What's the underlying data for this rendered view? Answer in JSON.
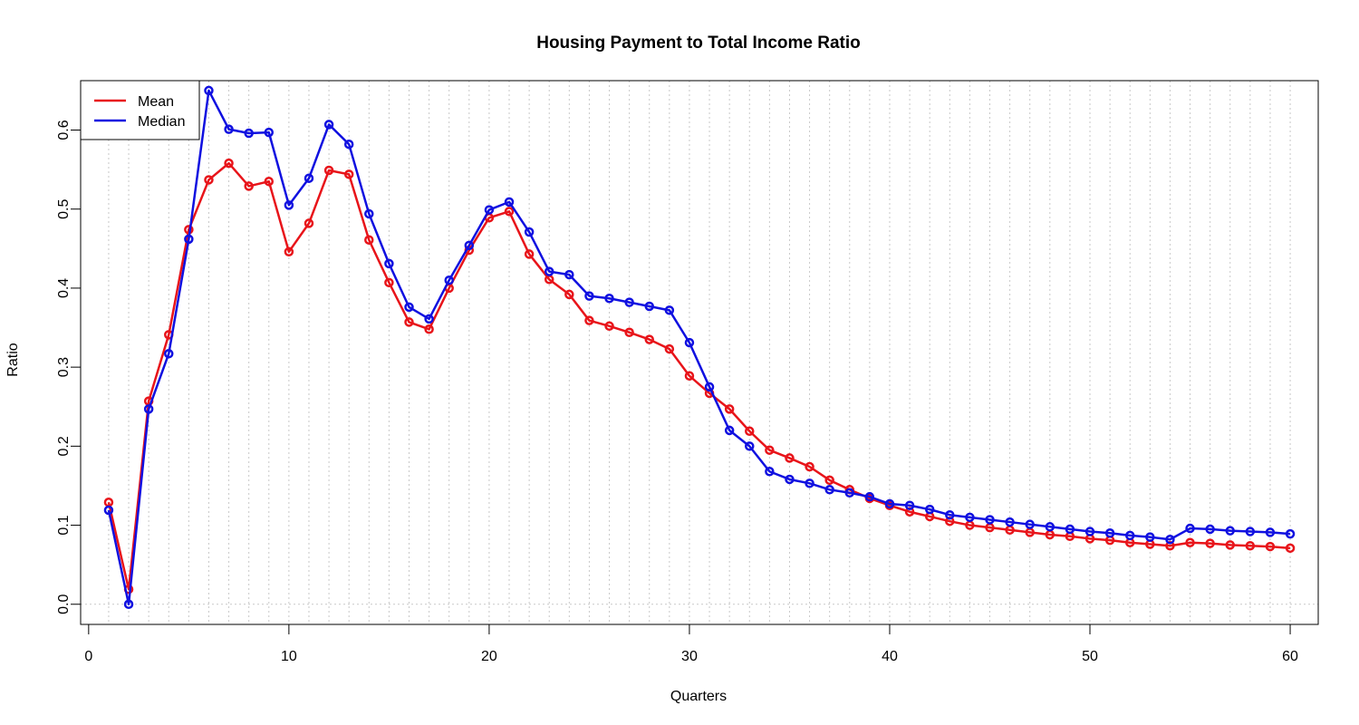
{
  "chart_data": {
    "type": "line",
    "title": "Housing Payment to Total Income Ratio",
    "xlabel": "Quarters",
    "ylabel": "Ratio",
    "xlim": [
      -0.4,
      61.4
    ],
    "ylim": [
      -0.0255,
      0.6625
    ],
    "x_ticks": [
      0,
      10,
      20,
      30,
      40,
      50,
      60
    ],
    "x_tick_labels": [
      "0",
      "10",
      "20",
      "30",
      "40",
      "50",
      "60"
    ],
    "y_ticks": [
      0.0,
      0.1,
      0.2,
      0.3,
      0.4,
      0.5,
      0.6
    ],
    "y_tick_labels": [
      "0.0",
      "0.1",
      "0.2",
      "0.3",
      "0.4",
      "0.5",
      "0.6"
    ],
    "grid": {
      "vertical_at_each_x": true,
      "horizontal_at_zero": true,
      "style": "dotted",
      "color": "#c8c8c8"
    },
    "legend_position": "top-left",
    "x": [
      1,
      2,
      3,
      4,
      5,
      6,
      7,
      8,
      9,
      10,
      11,
      12,
      13,
      14,
      15,
      16,
      17,
      18,
      19,
      20,
      21,
      22,
      23,
      24,
      25,
      26,
      27,
      28,
      29,
      30,
      31,
      32,
      33,
      34,
      35,
      36,
      37,
      38,
      39,
      40,
      41,
      42,
      43,
      44,
      45,
      46,
      47,
      48,
      49,
      50,
      51,
      52,
      53,
      54,
      55,
      56,
      57,
      58,
      59,
      60
    ],
    "series": [
      {
        "name": "Mean",
        "color": "#e8141a",
        "values": [
          0.129,
          0.019,
          0.257,
          0.341,
          0.474,
          0.537,
          0.558,
          0.529,
          0.535,
          0.446,
          0.482,
          0.549,
          0.544,
          0.461,
          0.407,
          0.357,
          0.348,
          0.4,
          0.448,
          0.489,
          0.497,
          0.443,
          0.411,
          0.392,
          0.359,
          0.352,
          0.344,
          0.335,
          0.323,
          0.289,
          0.267,
          0.247,
          0.219,
          0.195,
          0.185,
          0.174,
          0.157,
          0.145,
          0.134,
          0.125,
          0.117,
          0.111,
          0.105,
          0.1,
          0.097,
          0.094,
          0.091,
          0.088,
          0.086,
          0.083,
          0.081,
          0.078,
          0.076,
          0.074,
          0.078,
          0.077,
          0.075,
          0.074,
          0.073,
          0.071
        ]
      },
      {
        "name": "Median",
        "color": "#1010e0",
        "values": [
          0.119,
          0.0,
          0.247,
          0.317,
          0.462,
          0.65,
          0.601,
          0.596,
          0.597,
          0.505,
          0.539,
          0.607,
          0.582,
          0.494,
          0.431,
          0.376,
          0.361,
          0.41,
          0.454,
          0.499,
          0.509,
          0.471,
          0.421,
          0.417,
          0.39,
          0.387,
          0.382,
          0.377,
          0.372,
          0.331,
          0.275,
          0.22,
          0.2,
          0.168,
          0.158,
          0.153,
          0.145,
          0.141,
          0.136,
          0.127,
          0.125,
          0.12,
          0.113,
          0.11,
          0.107,
          0.104,
          0.101,
          0.098,
          0.095,
          0.092,
          0.09,
          0.087,
          0.085,
          0.082,
          0.096,
          0.095,
          0.093,
          0.092,
          0.091,
          0.089
        ]
      }
    ]
  }
}
